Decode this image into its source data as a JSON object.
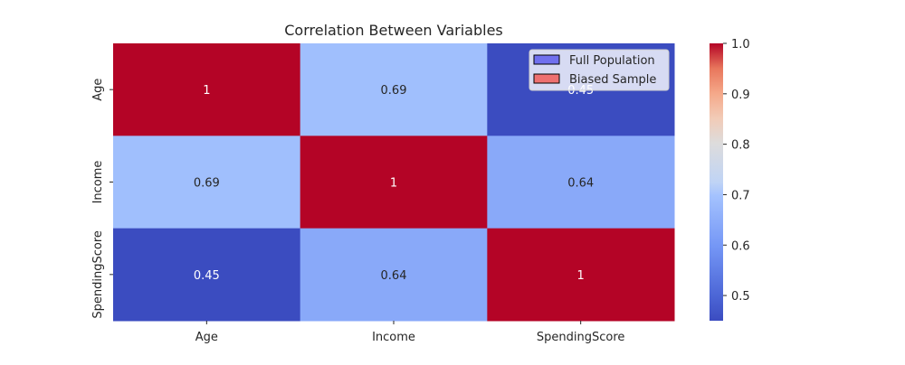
{
  "chart_data": {
    "type": "heatmap",
    "title": "Correlation Between Variables",
    "xlabel": "",
    "ylabel": "",
    "x_categories": [
      "Age",
      "Income",
      "SpendingScore"
    ],
    "y_categories": [
      "Age",
      "Income",
      "SpendingScore"
    ],
    "values": [
      [
        1,
        0.69,
        0.45
      ],
      [
        0.69,
        1,
        0.64
      ],
      [
        0.45,
        0.64,
        1
      ]
    ],
    "cell_labels": [
      [
        "1",
        "0.69",
        "0.45"
      ],
      [
        "0.69",
        "1",
        "0.64"
      ],
      [
        "0.45",
        "0.64",
        "1"
      ]
    ],
    "colormap": "coolwarm",
    "color_range": [
      0.45,
      1.0
    ],
    "colorbar": {
      "ticks": [
        "0.5",
        "0.6",
        "0.7",
        "0.8",
        "0.9",
        "1.0"
      ],
      "tick_values": [
        0.5,
        0.6,
        0.7,
        0.8,
        0.9,
        1.0
      ]
    },
    "legend": {
      "position": "top-right",
      "entries": [
        {
          "label": "Full Population",
          "color": "#7070ee"
        },
        {
          "label": "Biased Sample",
          "color": "#ee7070"
        }
      ]
    },
    "grid": false
  }
}
